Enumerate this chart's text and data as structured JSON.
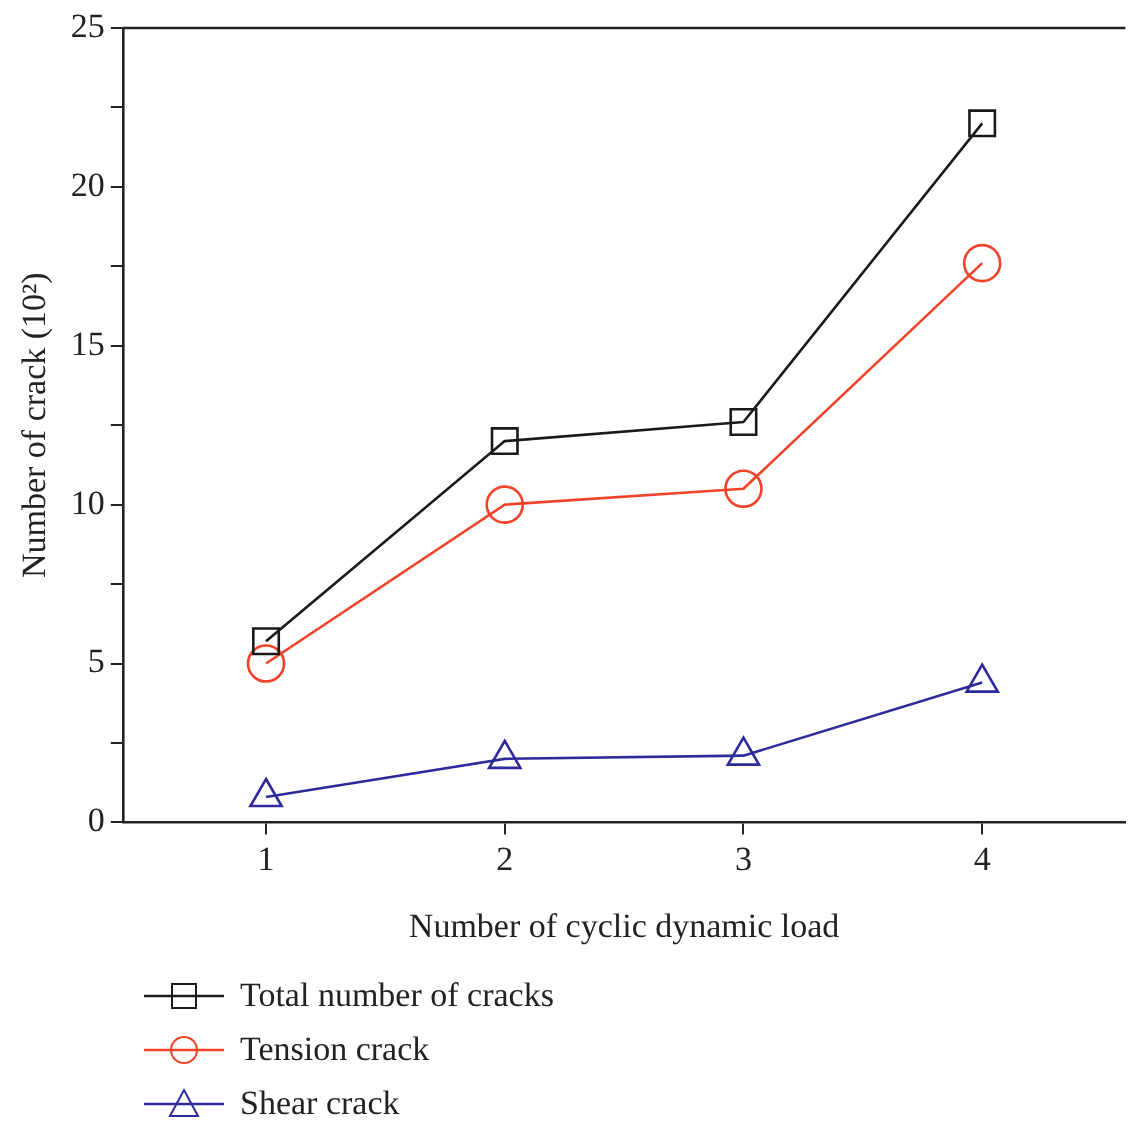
{
  "chart_data": {
    "type": "line",
    "xlabel": "Number of cyclic dynamic load",
    "ylabel": "Number of crack (10²)",
    "x": [
      1,
      2,
      3,
      4
    ],
    "xlim": [
      0.4,
      4.6
    ],
    "xticks": [
      1,
      2,
      3,
      4
    ],
    "ylim": [
      0,
      25
    ],
    "yticks": [
      0,
      {
        "value": 2.5,
        "label": null
      },
      5,
      {
        "value": 7.5,
        "label": null
      },
      10,
      {
        "value": 12.5,
        "label": null
      },
      15,
      {
        "value": 17.5,
        "label": null
      },
      20,
      {
        "value": 22.5,
        "label": null
      },
      25
    ],
    "series": [
      {
        "name": "Total number of cracks",
        "color": "#1a1a1a",
        "marker": "square",
        "values": [
          5.7,
          12,
          12.6,
          22
        ]
      },
      {
        "name": "Tension crack",
        "color": "#f0432a",
        "marker": "circle",
        "values": [
          5,
          10,
          10.5,
          17.6
        ]
      },
      {
        "name": "Shear crack",
        "color": "#2e2a9a",
        "marker": "triangle",
        "values": [
          0.8,
          2,
          2.1,
          4.4
        ]
      }
    ],
    "grid": false,
    "legend": "bottom left",
    "line_style": "solid"
  }
}
